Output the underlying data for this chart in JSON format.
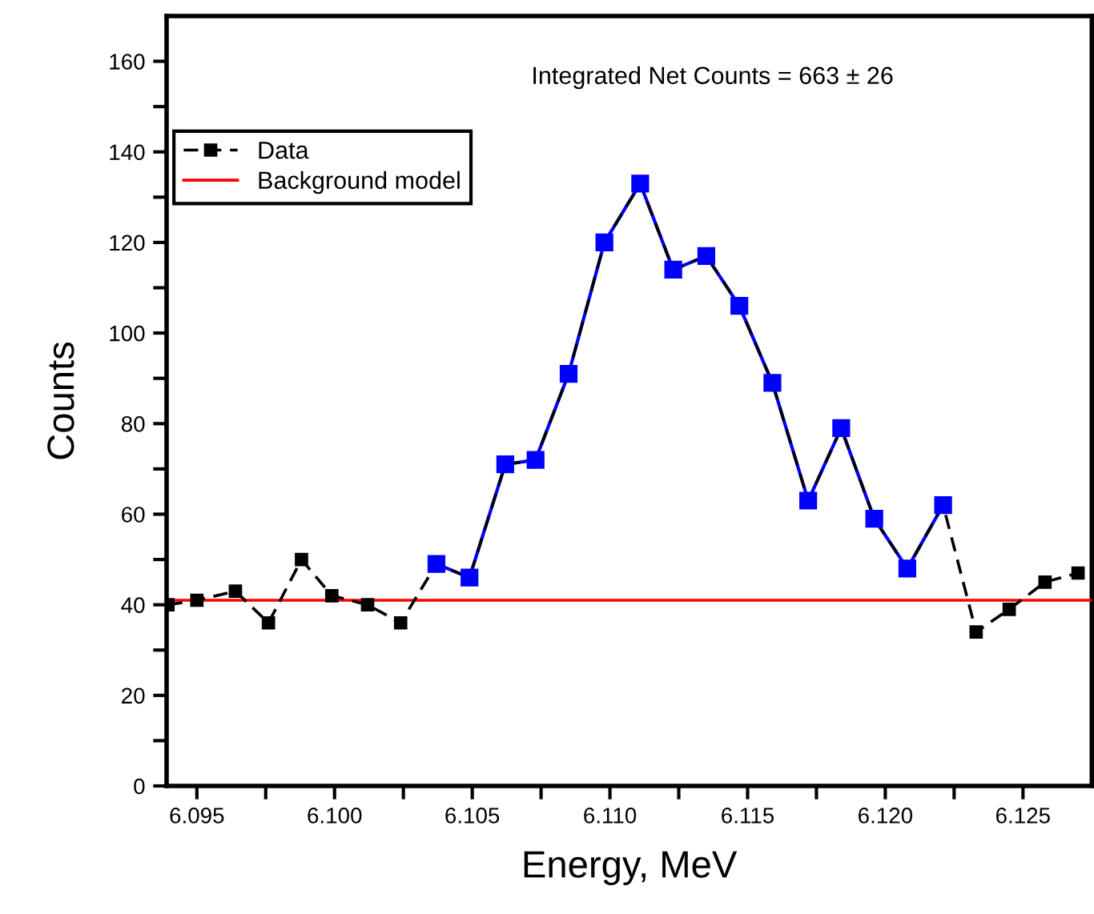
{
  "chart_data": {
    "type": "line",
    "xlabel": "Energy, MeV",
    "ylabel": "Counts",
    "annotations": [
      "Integrated Net Counts = 663 ± 26"
    ],
    "xlim": [
      6.0939,
      6.1275
    ],
    "ylim": [
      0,
      170
    ],
    "xticks": [
      6.095,
      {
        "value": 6.0975,
        "label": null
      },
      {
        "value": 6.1,
        "label": "6.100"
      },
      {
        "value": 6.1025,
        "label": null
      },
      6.105,
      {
        "value": 6.1075,
        "label": null
      },
      {
        "value": 6.11,
        "label": "6.110"
      },
      {
        "value": 6.1125,
        "label": null
      },
      6.115,
      {
        "value": 6.1175,
        "label": null
      },
      {
        "value": 6.12,
        "label": "6.120"
      },
      {
        "value": 6.1225,
        "label": null
      },
      6.125
    ],
    "yticks": [
      0,
      {
        "value": 10,
        "label": null
      },
      20,
      {
        "value": 30,
        "label": null
      },
      40,
      {
        "value": 50,
        "label": null
      },
      60,
      {
        "value": 70,
        "label": null
      },
      80,
      {
        "value": 90,
        "label": null
      },
      100,
      {
        "value": 110,
        "label": null
      },
      120,
      {
        "value": 130,
        "label": null
      },
      140,
      {
        "value": 150,
        "label": null
      },
      160
    ],
    "grid": false,
    "legend": "top left",
    "series": [
      {
        "name": "Data",
        "color": "#000000",
        "marker": "square",
        "line_style": "dashed",
        "x": [
          6.09395,
          6.095,
          6.0964,
          6.0976,
          6.0988,
          6.0999,
          6.1012,
          6.1024,
          6.1037,
          6.1049,
          6.1062,
          6.1073,
          6.1085,
          6.1098,
          6.1111,
          6.1123,
          6.1135,
          6.1147,
          6.1159,
          6.1172,
          6.1184,
          6.1196,
          6.1208,
          6.1221,
          6.1233,
          6.1245,
          6.1258,
          6.127
        ],
        "values": [
          40,
          41,
          43,
          36,
          50,
          42,
          40,
          36,
          49,
          46,
          71,
          72,
          91,
          120,
          133,
          114,
          117,
          106,
          89,
          63,
          79,
          59,
          48,
          62,
          34,
          39,
          45,
          47
        ]
      },
      {
        "color": "#0000ff",
        "marker": "square",
        "line_style": "solid",
        "x": [
          6.1037,
          6.1049,
          6.1062,
          6.1073,
          6.1085,
          6.1098,
          6.1111,
          6.1123,
          6.1135,
          6.1147,
          6.1159,
          6.1172,
          6.1184,
          6.1196,
          6.1208,
          6.1221
        ],
        "values": [
          49,
          46,
          71,
          72,
          91,
          120,
          133,
          114,
          117,
          106,
          89,
          63,
          79,
          59,
          48,
          62
        ]
      },
      {
        "name": "Background model",
        "color": "#ff0000",
        "marker": "none",
        "line_style": "solid",
        "x": [
          6.094,
          6.1275
        ],
        "values": [
          41,
          41
        ]
      }
    ]
  }
}
